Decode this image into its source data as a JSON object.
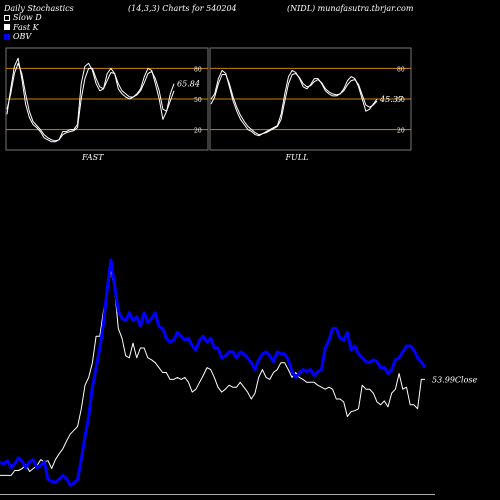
{
  "header": {
    "left": "Daily Stochastics",
    "center": "(14,3,3) Charts for 540204",
    "right": "(NIDL) munafasutra.tbrjar.com"
  },
  "legend": [
    {
      "label": "Slow  D",
      "icon": "hollow-square"
    },
    {
      "label": "Fast K",
      "icon": "white-square"
    },
    {
      "label": "OBV",
      "icon": "blue-square"
    }
  ],
  "colors": {
    "background": "#000000",
    "stoch_line": "#ffffff",
    "bands": "#c8820a",
    "obv": "#0000ff",
    "price": "#ffffff"
  },
  "chart_data": [
    {
      "type": "line",
      "name": "FAST",
      "title": "FAST",
      "ylim": [
        0,
        100
      ],
      "yticks": [
        20,
        50,
        80
      ],
      "bands": [
        20,
        50,
        80
      ],
      "last_value_label": "65.84",
      "series": [
        {
          "values": [
            35,
            60,
            82,
            90,
            70,
            45,
            32,
            25,
            22,
            18,
            12,
            10,
            8,
            8,
            10,
            18,
            18,
            20,
            20,
            25,
            65,
            82,
            85,
            78,
            65,
            58,
            60,
            75,
            80,
            75,
            60,
            55,
            52,
            50,
            52,
            55,
            60,
            72,
            80,
            78,
            65,
            50,
            30,
            38,
            55,
            65
          ]
        },
        {
          "values": [
            40,
            55,
            75,
            85,
            75,
            55,
            38,
            28,
            24,
            20,
            15,
            12,
            10,
            9,
            10,
            15,
            17,
            18,
            19,
            22,
            50,
            70,
            80,
            80,
            70,
            62,
            60,
            68,
            76,
            75,
            65,
            58,
            55,
            52,
            52,
            54,
            58,
            66,
            75,
            77,
            70,
            58,
            40,
            38,
            48,
            58
          ]
        }
      ]
    },
    {
      "type": "line",
      "name": "FULL",
      "title": "FULL",
      "ylim": [
        0,
        100
      ],
      "yticks": [
        20,
        50,
        80
      ],
      "bands": [
        20,
        50,
        80
      ],
      "last_value_label": "45.37",
      "series": [
        {
          "values": [
            50,
            55,
            70,
            78,
            75,
            62,
            48,
            38,
            30,
            25,
            20,
            18,
            15,
            14,
            16,
            18,
            20,
            22,
            24,
            35,
            55,
            72,
            78,
            76,
            70,
            62,
            60,
            64,
            70,
            70,
            65,
            58,
            55,
            53,
            53,
            55,
            60,
            68,
            72,
            70,
            62,
            50,
            38,
            40,
            45,
            50
          ]
        },
        {
          "values": [
            45,
            52,
            65,
            74,
            74,
            65,
            52,
            42,
            34,
            28,
            23,
            20,
            17,
            15,
            16,
            17,
            19,
            21,
            23,
            30,
            48,
            65,
            74,
            75,
            71,
            65,
            62,
            63,
            67,
            69,
            66,
            60,
            57,
            55,
            54,
            55,
            58,
            64,
            68,
            69,
            64,
            54,
            44,
            42,
            44,
            48
          ]
        }
      ]
    },
    {
      "type": "line",
      "name": "price-obv",
      "last_value_label": "53.99Close",
      "series": [
        {
          "name": "Price",
          "values": [
            20,
            20,
            20,
            20,
            25,
            25,
            27,
            31,
            24,
            27,
            30,
            36,
            34,
            35,
            27,
            36,
            42,
            47,
            55,
            62,
            66,
            70,
            88,
            112,
            120,
            135,
            162,
            162,
            188,
            205,
            230,
            210,
            170,
            160,
            142,
            140,
            155,
            140,
            150,
            150,
            140,
            138,
            135,
            130,
            125,
            125,
            118,
            118,
            120,
            118,
            120,
            115,
            105,
            108,
            115,
            122,
            130,
            128,
            120,
            110,
            105,
            108,
            112,
            110,
            110,
            115,
            110,
            105,
            98,
            104,
            120,
            128,
            120,
            118,
            125,
            128,
            135,
            135,
            128,
            120,
            125,
            120,
            118,
            115,
            115,
            115,
            112,
            110,
            108,
            110,
            108,
            98,
            98,
            95,
            80,
            85,
            86,
            88,
            112,
            108,
            108,
            104,
            95,
            92,
            96,
            90,
            104,
            108,
            124,
            108,
            110,
            92,
            92,
            88,
            118,
            118
          ]
        },
        {
          "name": "OBV",
          "values": [
            33,
            32,
            35,
            28,
            32,
            38,
            34,
            28,
            34,
            36,
            28,
            30,
            34,
            16,
            14,
            13,
            16,
            20,
            17,
            10,
            12,
            16,
            36,
            60,
            80,
            110,
            130,
            150,
            175,
            210,
            240,
            214,
            188,
            180,
            178,
            186,
            178,
            182,
            172,
            186,
            176,
            180,
            186,
            172,
            170,
            160,
            156,
            158,
            166,
            162,
            158,
            160,
            152,
            148,
            158,
            162,
            156,
            160,
            150,
            150,
            140,
            142,
            146,
            146,
            140,
            146,
            144,
            140,
            135,
            128,
            138,
            144,
            146,
            142,
            136,
            146,
            144,
            144,
            138,
            126,
            120,
            124,
            128,
            126,
            128,
            122,
            126,
            128,
            150,
            158,
            170,
            170,
            160,
            158,
            166,
            148,
            152,
            144,
            140,
            136,
            135,
            138,
            136,
            130,
            130,
            124,
            128,
            138,
            140,
            146,
            152,
            152,
            148,
            140,
            136,
            130
          ]
        }
      ]
    }
  ]
}
